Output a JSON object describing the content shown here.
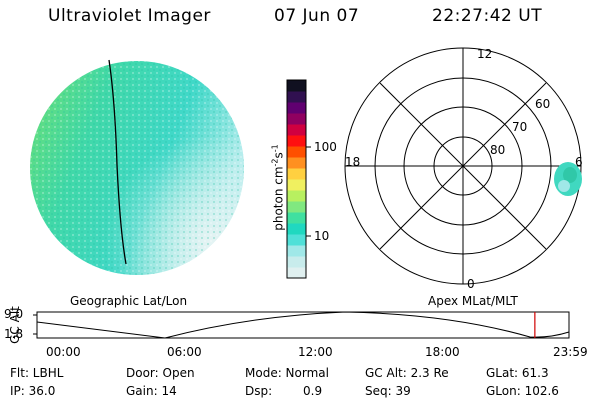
{
  "header": {
    "instrument": "Ultraviolet Imager",
    "date": "07 Jun 07",
    "time": "22:27:42 UT"
  },
  "left_panel": {
    "caption": "Geographic Lat/Lon"
  },
  "right_panel": {
    "caption": "Apex MLat/MLT",
    "mlt_labels": [
      "12",
      "18",
      "6",
      "0"
    ],
    "lat_labels": [
      "60",
      "70",
      "80"
    ]
  },
  "colorbar": {
    "unit_label": "photon cm",
    "exp1": "-2",
    "mid": "s",
    "exp2": "-1",
    "ticks": [
      "100",
      "10"
    ],
    "colors": [
      "#e0f0f0",
      "#c8ecec",
      "#a0e8e8",
      "#50e0d8",
      "#20d8c0",
      "#40e0a0",
      "#80e880",
      "#b8f060",
      "#f0f060",
      "#ffd040",
      "#ff9020",
      "#ff5000",
      "#ff1010",
      "#d00040",
      "#900060",
      "#600070",
      "#301050",
      "#101020"
    ]
  },
  "timeline": {
    "axis_label": "GC Alt",
    "y_ticks": [
      "9.0",
      "1.8"
    ],
    "x_ticks": [
      "00:00",
      "06:00",
      "12:00",
      "18:00",
      "23:59"
    ],
    "current_marker_hours": 22.46
  },
  "info": {
    "flt": "Flt: LBHL",
    "ip": "IP: 36.0",
    "door": "Door: Open",
    "gain": "Gain: 14",
    "mode": "Mode: Normal",
    "dsp_label": "Dsp:",
    "dsp_value": "0.9",
    "gc_alt": "GC Alt: 2.3 Re",
    "seq": "Seq: 39",
    "glat": "GLat: 61.3",
    "glon": "GLon: 102.6"
  }
}
